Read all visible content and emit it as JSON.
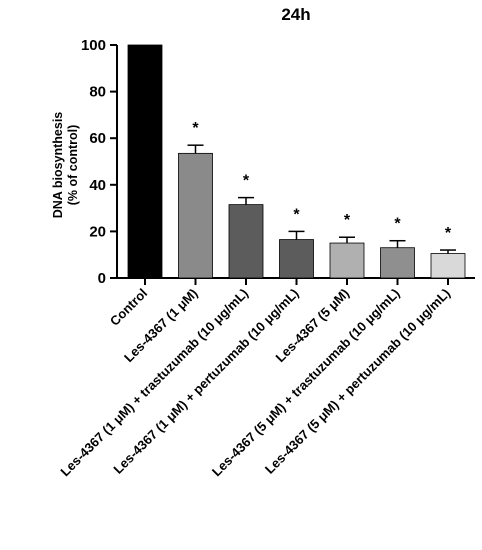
{
  "chart_data": {
    "type": "bar",
    "title": "24h",
    "ylabel_lines": [
      "DNA biosynthesis",
      "(% of control)"
    ],
    "ylim": [
      0,
      100
    ],
    "yticks": [
      "0",
      "20",
      "40",
      "60",
      "80",
      "100"
    ],
    "categories": [
      "Control",
      "Les-4367 (1 μM)",
      "Les-4367 (1 μM) + trastuzumab (10 μg/mL)",
      "Les-4367 (1 μM) + pertuzumab (10 μg/mL)",
      "Les-4367 (5 μM)",
      "Les-4367 (5 μM) + trastuzumab (10 μg/mL)",
      "Les-4367 (5 μM) + pertuzumab (10 μg/mL)"
    ],
    "values": [
      100,
      53.5,
      31.5,
      16.5,
      15,
      13,
      10.5
    ],
    "errors": [
      0,
      3.5,
      3,
      3.5,
      2.5,
      3,
      1.5
    ],
    "significance": [
      "",
      "*",
      "*",
      "*",
      "*",
      "*",
      "*"
    ],
    "bar_colors": [
      "#000000",
      "#8a8a8a",
      "#5c5c5c",
      "#5c5c5c",
      "#b0b0b0",
      "#8f8f8f",
      "#d9d9d9"
    ],
    "grid": false
  }
}
